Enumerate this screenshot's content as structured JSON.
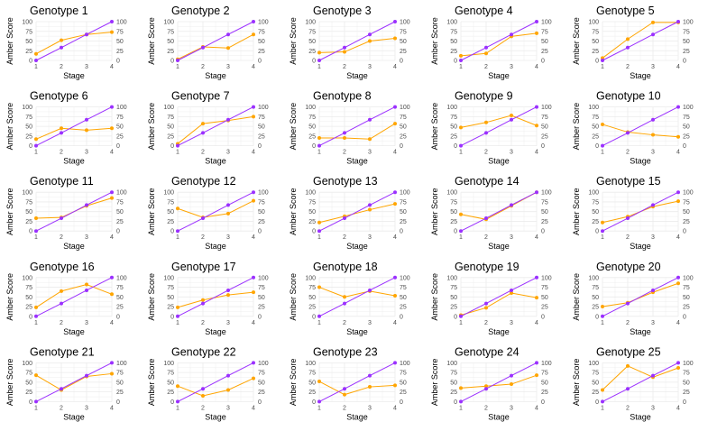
{
  "colors": {
    "reference": "#9b30ff",
    "genotype": "#ffa500",
    "grid": "#ebebeb",
    "text": "#000000",
    "tick_text": "#4d4d4d"
  },
  "chart_data": {
    "type": "line",
    "layout": "small-multiples 5x5",
    "xlabel": "Stage",
    "ylabel": "Amber Score",
    "x": [
      1,
      2,
      3,
      4
    ],
    "ylim": [
      0,
      100
    ],
    "yticks": [
      0,
      25,
      50,
      75,
      100
    ],
    "secondary_yticks": [
      0,
      25,
      50,
      75,
      100
    ],
    "reference_series": [
      0,
      33,
      67,
      100
    ],
    "panels": [
      {
        "title": "Genotype 1",
        "values": [
          17,
          52,
          67,
          73
        ]
      },
      {
        "title": "Genotype 2",
        "values": [
          3,
          35,
          32,
          67
        ]
      },
      {
        "title": "Genotype 3",
        "values": [
          20,
          22,
          50,
          57
        ]
      },
      {
        "title": "Genotype 4",
        "values": [
          12,
          18,
          62,
          70
        ]
      },
      {
        "title": "Genotype 5",
        "values": [
          6,
          55,
          98,
          98
        ]
      },
      {
        "title": "Genotype 6",
        "values": [
          17,
          45,
          40,
          45
        ]
      },
      {
        "title": "Genotype 7",
        "values": [
          5,
          57,
          65,
          75
        ]
      },
      {
        "title": "Genotype 8",
        "values": [
          20,
          20,
          17,
          57
        ]
      },
      {
        "title": "Genotype 9",
        "values": [
          47,
          60,
          78,
          52
        ]
      },
      {
        "title": "Genotype 10",
        "values": [
          55,
          35,
          28,
          23
        ]
      },
      {
        "title": "Genotype 11",
        "values": [
          33,
          35,
          65,
          85
        ]
      },
      {
        "title": "Genotype 12",
        "values": [
          58,
          35,
          45,
          78
        ]
      },
      {
        "title": "Genotype 13",
        "values": [
          22,
          38,
          55,
          70
        ]
      },
      {
        "title": "Genotype 14",
        "values": [
          43,
          30,
          65,
          100
        ]
      },
      {
        "title": "Genotype 15",
        "values": [
          22,
          37,
          63,
          77
        ]
      },
      {
        "title": "Genotype 16",
        "values": [
          23,
          65,
          82,
          57
        ]
      },
      {
        "title": "Genotype 17",
        "values": [
          23,
          42,
          55,
          62
        ]
      },
      {
        "title": "Genotype 18",
        "values": [
          75,
          50,
          65,
          53
        ]
      },
      {
        "title": "Genotype 19",
        "values": [
          3,
          22,
          60,
          48
        ]
      },
      {
        "title": "Genotype 20",
        "values": [
          25,
          35,
          62,
          85
        ]
      },
      {
        "title": "Genotype 21",
        "values": [
          68,
          30,
          65,
          72
        ]
      },
      {
        "title": "Genotype 22",
        "values": [
          40,
          15,
          30,
          60
        ]
      },
      {
        "title": "Genotype 23",
        "values": [
          52,
          18,
          38,
          42
        ]
      },
      {
        "title": "Genotype 24",
        "values": [
          35,
          40,
          45,
          68
        ]
      },
      {
        "title": "Genotype 25",
        "values": [
          30,
          92,
          63,
          87
        ]
      }
    ]
  }
}
